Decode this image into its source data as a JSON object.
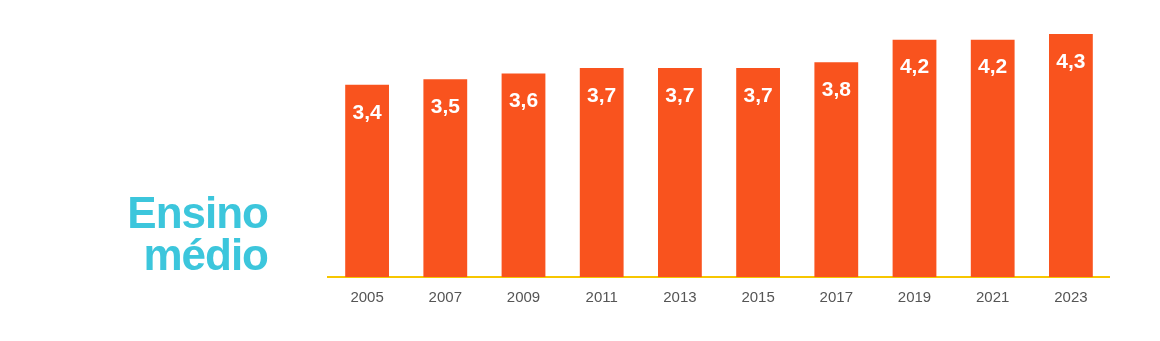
{
  "chart_data": {
    "type": "bar",
    "title": "Ensino médio",
    "categories": [
      "2005",
      "2007",
      "2009",
      "2011",
      "2013",
      "2015",
      "2017",
      "2019",
      "2021",
      "2023"
    ],
    "values": [
      3.4,
      3.5,
      3.6,
      3.7,
      3.7,
      3.7,
      3.8,
      4.2,
      4.2,
      4.3
    ],
    "value_labels": [
      "3,4",
      "3,5",
      "3,6",
      "3,7",
      "3,7",
      "3,7",
      "3,8",
      "4,2",
      "4,2",
      "4,3"
    ],
    "color": "#f9531e",
    "grid": false,
    "legend": false
  }
}
